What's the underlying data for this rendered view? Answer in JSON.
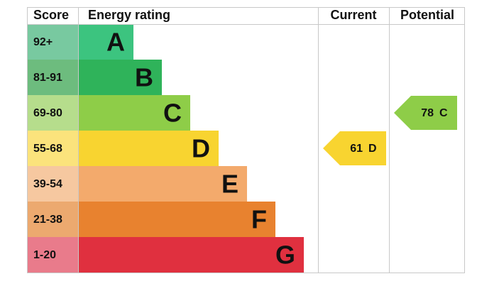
{
  "header": {
    "score": "Score",
    "rating": "Energy rating",
    "current": "Current",
    "potential": "Potential"
  },
  "bands": [
    {
      "score": "92+",
      "letter": "A",
      "color": "#3cc47f",
      "score_color": "#78c9a0"
    },
    {
      "score": "81-91",
      "letter": "B",
      "color": "#2fb35a",
      "score_color": "#6dbc7e"
    },
    {
      "score": "69-80",
      "letter": "C",
      "color": "#8ecd48",
      "score_color": "#b6dd8c"
    },
    {
      "score": "55-68",
      "letter": "D",
      "color": "#f8d430",
      "score_color": "#fbe37c"
    },
    {
      "score": "39-54",
      "letter": "E",
      "color": "#f3aa6c",
      "score_color": "#f6c8a0"
    },
    {
      "score": "21-38",
      "letter": "F",
      "color": "#e8822f",
      "score_color": "#eca96f"
    },
    {
      "score": "1-20",
      "letter": "G",
      "color": "#e0303f",
      "score_color": "#e97b8b"
    }
  ],
  "current": {
    "value": 61,
    "letter": "D"
  },
  "potential": {
    "value": 78,
    "letter": "C"
  }
}
